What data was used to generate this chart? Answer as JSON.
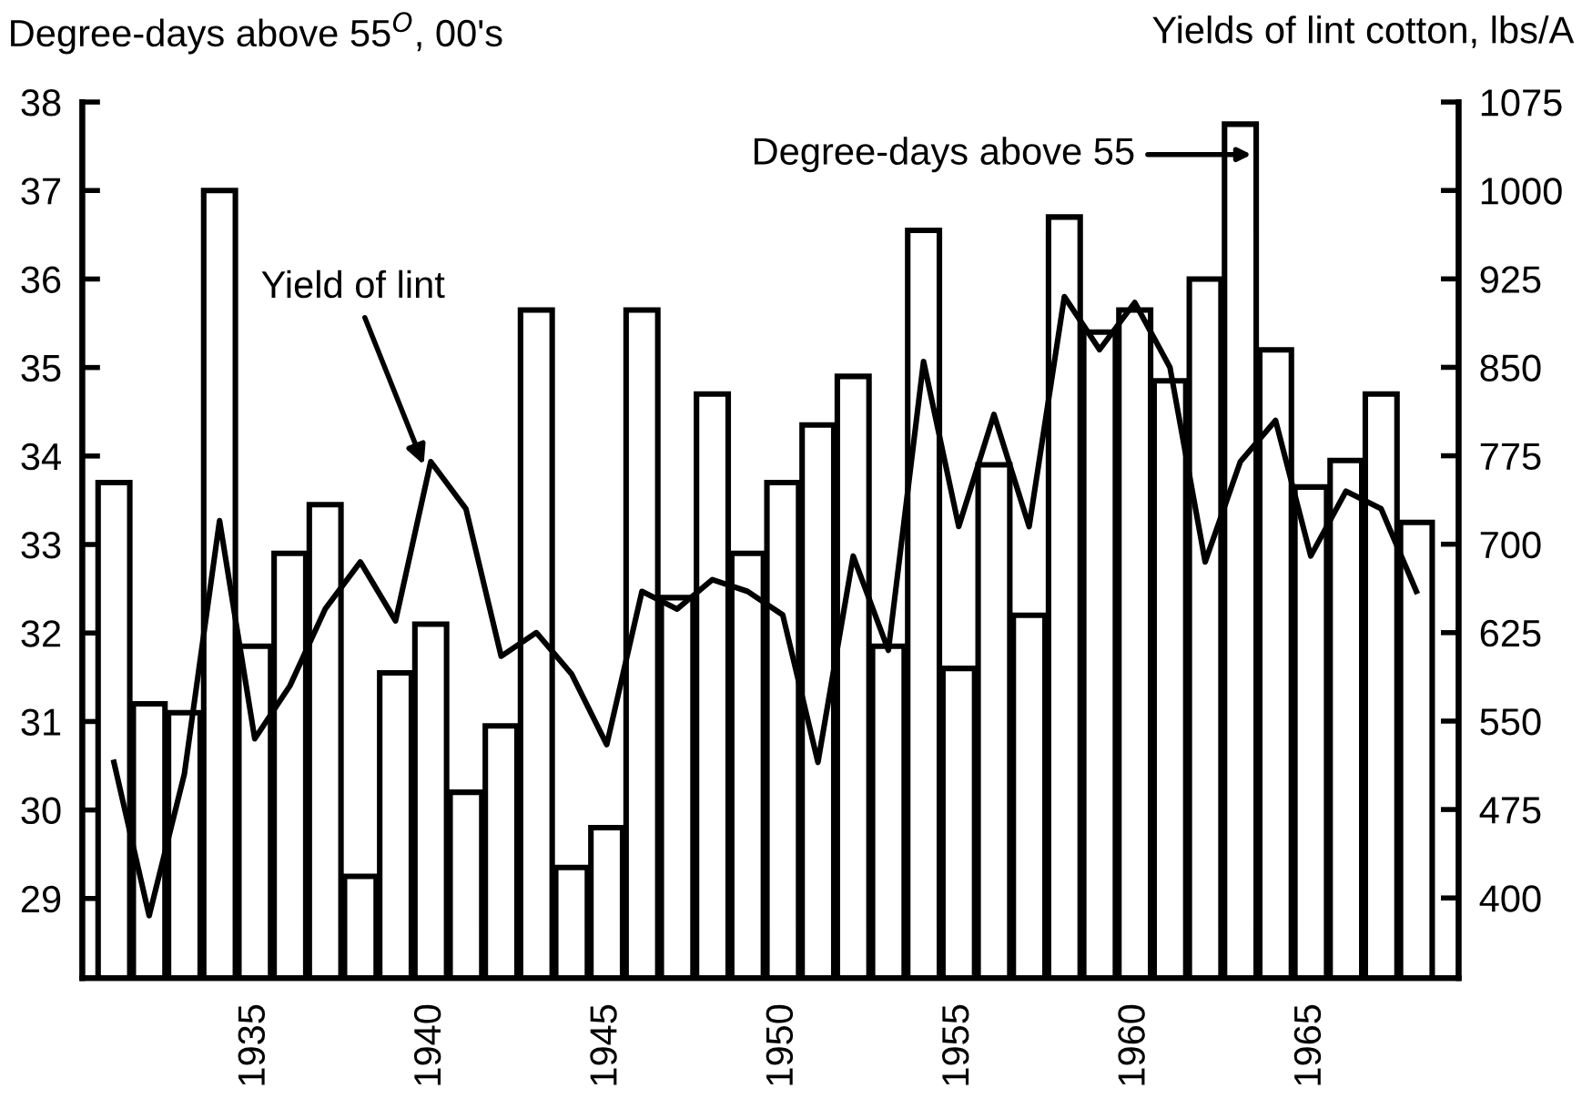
{
  "chart_data": {
    "type": "bar",
    "ylabel": "Degree-days above 55$^{O}$, 00's",
    "y2label": "Yields of lint cotton, lbs/A",
    "x": [
      1931,
      1932,
      1933,
      1934,
      1935,
      1936,
      1937,
      1938,
      1939,
      1940,
      1941,
      1942,
      1943,
      1944,
      1945,
      1946,
      1947,
      1948,
      1949,
      1950,
      1951,
      1952,
      1953,
      1954,
      1955,
      1956,
      1957,
      1958,
      1959,
      1960,
      1961,
      1962,
      1963,
      1964,
      1965,
      1966,
      1967,
      1968
    ],
    "series": [
      {
        "color": "#ffffff",
        "values": [
          33.7,
          31.2,
          31.1,
          37.0,
          31.85,
          32.9,
          33.45,
          29.25,
          31.55,
          32.1,
          30.2,
          30.95,
          35.65,
          29.35,
          29.8,
          35.65,
          32.4,
          34.7,
          32.9,
          33.7,
          34.35,
          34.9,
          31.85,
          36.55,
          31.6,
          33.9,
          32.2,
          36.7,
          35.4,
          35.65,
          34.85,
          36.0,
          37.75,
          35.2,
          33.65,
          33.95,
          34.7,
          33.25
        ]
      },
      {
        "type": "line",
        "axis": "y2",
        "color": "#000000",
        "values": [
          515,
          385,
          505,
          720,
          535,
          580,
          645,
          685,
          635,
          770,
          730,
          605,
          625,
          590,
          530,
          660,
          645,
          670,
          660,
          640,
          515,
          690,
          610,
          855,
          715,
          810,
          715,
          910,
          865,
          905,
          850,
          685,
          770,
          805,
          690,
          745,
          730,
          660
        ]
      }
    ],
    "annotations": [
      {
        "text": "Yield of lint",
        "x": 1939.8,
        "y": 33.9
      },
      "Degree-days above 55"
    ],
    "xlim": [
      1930.1,
      1969.2
    ],
    "xticks": [
      1935,
      1940,
      1945,
      1950,
      1955,
      1960,
      1965
    ],
    "ylim": [
      28.1,
      38
    ],
    "yticks": [
      29,
      30,
      31,
      32,
      33,
      34,
      35,
      36,
      37,
      38
    ],
    "y2lim": [
      332,
      1075
    ],
    "y2ticks": [
      400,
      475,
      550,
      625,
      700,
      775,
      850,
      925,
      1000,
      1075
    ],
    "grid": false,
    "legend": false,
    "marker": "none",
    "line_style": "solid"
  }
}
